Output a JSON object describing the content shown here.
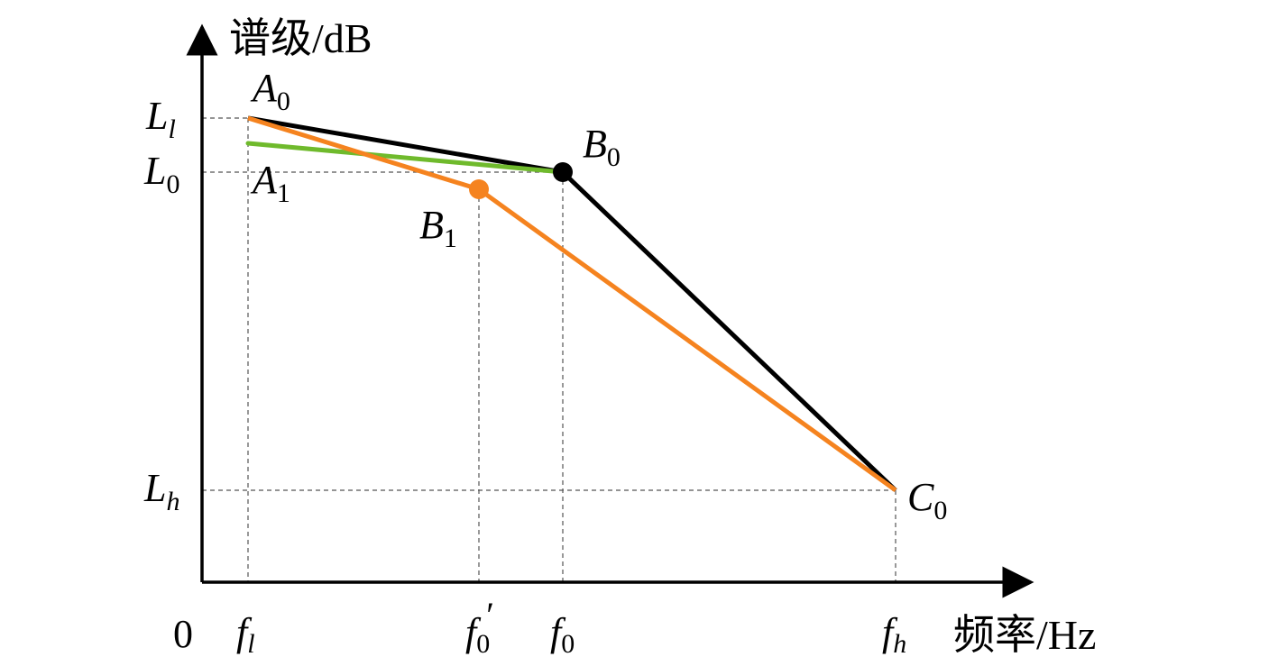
{
  "y_axis_title": "谱级/dB",
  "x_axis_title": "频率/Hz",
  "origin_label": "0",
  "y_ticks": [
    {
      "main": "L",
      "sub": "l"
    },
    {
      "main": "L",
      "sub": "0"
    },
    {
      "main": "L",
      "sub": "h"
    }
  ],
  "x_ticks": [
    {
      "main": "f",
      "sub": "l",
      "prime": ""
    },
    {
      "main": "f",
      "sub": "0",
      "prime": "′"
    },
    {
      "main": "f",
      "sub": "0",
      "prime": ""
    },
    {
      "main": "f",
      "sub": "h",
      "prime": ""
    }
  ],
  "points": {
    "A0": {
      "main": "A",
      "sub": "0"
    },
    "A1": {
      "main": "A",
      "sub": "1"
    },
    "B0": {
      "main": "B",
      "sub": "0"
    },
    "B1": {
      "main": "B",
      "sub": "1"
    },
    "C0": {
      "main": "C",
      "sub": "0"
    }
  },
  "colors": {
    "black_line": "#000000",
    "orange_line": "#f5831f",
    "green_line": "#6fba2c"
  }
}
